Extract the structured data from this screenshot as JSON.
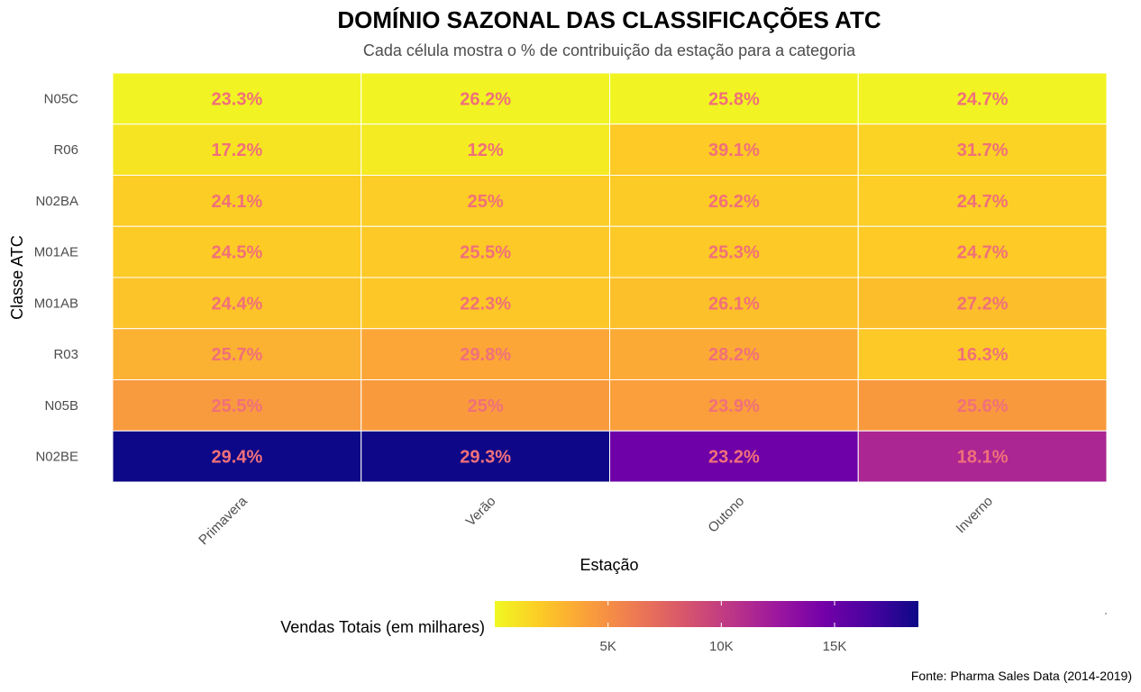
{
  "chart_data": {
    "type": "heatmap",
    "title": "DOMÍNIO SAZONAL DAS CLASSIFICAÇÕES ATC",
    "subtitle": "Cada célula mostra o % de contribuição da estação para a categoria",
    "xlabel": "Estação",
    "ylabel": "Classe ATC",
    "caption": "Fonte: Pharma Sales Data (2014-2019)",
    "x_categories": [
      "Primavera",
      "Verão",
      "Outono",
      "Inverno"
    ],
    "y_categories": [
      "N05C",
      "R06",
      "N02BA",
      "M01AE",
      "M01AB",
      "R03",
      "N05B",
      "N02BE"
    ],
    "labels": [
      [
        "23.3%",
        "26.2%",
        "25.8%",
        "24.7%"
      ],
      [
        "17.2%",
        "12%",
        "39.1%",
        "31.7%"
      ],
      [
        "24.1%",
        "25%",
        "26.2%",
        "24.7%"
      ],
      [
        "24.5%",
        "25.5%",
        "25.3%",
        "24.7%"
      ],
      [
        "24.4%",
        "22.3%",
        "26.1%",
        "27.2%"
      ],
      [
        "25.7%",
        "29.8%",
        "28.2%",
        "16.3%"
      ],
      [
        "25.5%",
        "25%",
        "23.9%",
        "25.6%"
      ],
      [
        "29.4%",
        "29.3%",
        "23.2%",
        "18.1%"
      ]
    ],
    "fill_values": [
      [
        210,
        235,
        232,
        222
      ],
      [
        890,
        620,
        2030,
        1650
      ],
      [
        1840,
        1910,
        2000,
        1880
      ],
      [
        2010,
        2090,
        2070,
        2020
      ],
      [
        2330,
        2130,
        2490,
        2600
      ],
      [
        3240,
        3760,
        3550,
        2060
      ],
      [
        4400,
        4310,
        4120,
        4420
      ],
      [
        18700,
        18650,
        14760,
        11520
      ]
    ],
    "legend": {
      "title": "Vendas Totais (em milhares)",
      "ticks": [
        5000,
        10000,
        15000
      ],
      "tick_labels": [
        "5K",
        "10K",
        "15K"
      ],
      "range": [
        0,
        18700
      ],
      "position": "bottom"
    },
    "colors": {
      "scale": [
        "#0d0887",
        "#47039f",
        "#7301a8",
        "#9c179e",
        "#bd3786",
        "#d8576b",
        "#ed7953",
        "#fa9e3b",
        "#fdc926",
        "#f0f921"
      ],
      "label_color": "#f0707a",
      "cell_border": "#ffffff"
    }
  }
}
